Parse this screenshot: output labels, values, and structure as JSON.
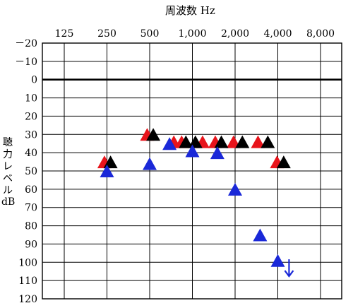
{
  "chart_data": {
    "type": "scatter",
    "title": "",
    "xlabel": "周波数 Hz",
    "ylabel_chars": [
      "聴",
      "力",
      "レ",
      "ベ",
      "ル"
    ],
    "ylabel_unit": "dB",
    "x_tick_labels": [
      "125",
      "250",
      "500",
      "1,000",
      "2,000",
      "4,000",
      "8,000"
    ],
    "x_ticks_hz": [
      125,
      250,
      500,
      1000,
      2000,
      4000,
      8000
    ],
    "x_scale": "log2",
    "y_tick_labels": [
      "－20",
      "－10",
      "0",
      "10",
      "20",
      "30",
      "40",
      "50",
      "60",
      "70",
      "80",
      "90",
      "100",
      "110",
      "120"
    ],
    "y_ticks": [
      -20,
      -10,
      0,
      10,
      20,
      30,
      40,
      50,
      60,
      70,
      80,
      90,
      100,
      110,
      120
    ],
    "ylim": [
      -20,
      120
    ],
    "y_inverted": true,
    "grid": true,
    "marker": "triangle",
    "series": [
      {
        "color": "#e8141b",
        "points": [
          {
            "x": 240,
            "y": 45
          },
          {
            "x": 480,
            "y": 30
          },
          {
            "x": 740,
            "y": 34
          },
          {
            "x": 840,
            "y": 34
          },
          {
            "x": 1180,
            "y": 34
          },
          {
            "x": 1450,
            "y": 34
          },
          {
            "x": 1950,
            "y": 34
          },
          {
            "x": 2900,
            "y": 34
          },
          {
            "x": 3950,
            "y": 45
          }
        ]
      },
      {
        "color": "#000000",
        "points": [
          {
            "x": 265,
            "y": 45
          },
          {
            "x": 530,
            "y": 30
          },
          {
            "x": 900,
            "y": 34
          },
          {
            "x": 1050,
            "y": 34
          },
          {
            "x": 1600,
            "y": 34
          },
          {
            "x": 2250,
            "y": 34
          },
          {
            "x": 3400,
            "y": 34
          },
          {
            "x": 4400,
            "y": 45
          }
        ]
      },
      {
        "color": "#1a28d8",
        "points": [
          {
            "x": 250,
            "y": 50
          },
          {
            "x": 500,
            "y": 46
          },
          {
            "x": 690,
            "y": 35
          },
          {
            "x": 1000,
            "y": 39
          },
          {
            "x": 1500,
            "y": 40
          },
          {
            "x": 2000,
            "y": 60
          },
          {
            "x": 3000,
            "y": 85
          },
          {
            "x": 4000,
            "y": 99
          }
        ],
        "no_response_arrow": {
          "x": 4800,
          "y": 103
        }
      }
    ]
  }
}
